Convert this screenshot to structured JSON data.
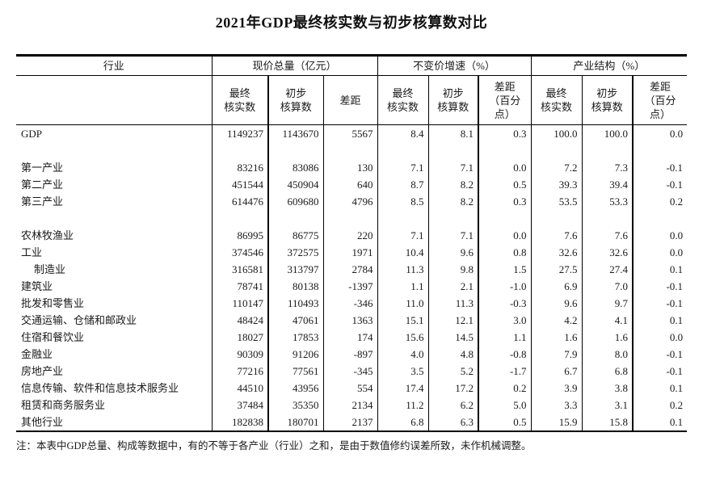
{
  "title": "2021年GDP最终核实数与初步核算数对比",
  "table": {
    "industry_header": "行业",
    "groups": [
      "现价总量（亿元）",
      "不变价增速（%）",
      "产业结构（%）"
    ],
    "subheaders": [
      "最终\n核实数",
      "初步\n核算数",
      "差距",
      "最终\n核实数",
      "初步\n核算数",
      "差距\n（百分\n点）",
      "最终\n核实数",
      "初步\n核算数",
      "差距\n（百分\n点）"
    ],
    "rows": [
      {
        "label": "GDP",
        "values": [
          "1149237",
          "1143670",
          "5567",
          "8.4",
          "8.1",
          "0.3",
          "100.0",
          "100.0",
          "0.0"
        ]
      },
      {
        "blank": true
      },
      {
        "label": "第一产业",
        "values": [
          "83216",
          "83086",
          "130",
          "7.1",
          "7.1",
          "0.0",
          "7.2",
          "7.3",
          "-0.1"
        ]
      },
      {
        "label": "第二产业",
        "values": [
          "451544",
          "450904",
          "640",
          "8.7",
          "8.2",
          "0.5",
          "39.3",
          "39.4",
          "-0.1"
        ]
      },
      {
        "label": "第三产业",
        "values": [
          "614476",
          "609680",
          "4796",
          "8.5",
          "8.2",
          "0.3",
          "53.5",
          "53.3",
          "0.2"
        ]
      },
      {
        "blank": true
      },
      {
        "label": "农林牧渔业",
        "values": [
          "86995",
          "86775",
          "220",
          "7.1",
          "7.1",
          "0.0",
          "7.6",
          "7.6",
          "0.0"
        ]
      },
      {
        "label": "工业",
        "values": [
          "374546",
          "372575",
          "1971",
          "10.4",
          "9.6",
          "0.8",
          "32.6",
          "32.6",
          "0.0"
        ]
      },
      {
        "label": "制造业",
        "indent": true,
        "values": [
          "316581",
          "313797",
          "2784",
          "11.3",
          "9.8",
          "1.5",
          "27.5",
          "27.4",
          "0.1"
        ]
      },
      {
        "label": "建筑业",
        "values": [
          "78741",
          "80138",
          "-1397",
          "1.1",
          "2.1",
          "-1.0",
          "6.9",
          "7.0",
          "-0.1"
        ]
      },
      {
        "label": "批发和零售业",
        "values": [
          "110147",
          "110493",
          "-346",
          "11.0",
          "11.3",
          "-0.3",
          "9.6",
          "9.7",
          "-0.1"
        ]
      },
      {
        "label": "交通运输、仓储和邮政业",
        "values": [
          "48424",
          "47061",
          "1363",
          "15.1",
          "12.1",
          "3.0",
          "4.2",
          "4.1",
          "0.1"
        ]
      },
      {
        "label": "住宿和餐饮业",
        "values": [
          "18027",
          "17853",
          "174",
          "15.6",
          "14.5",
          "1.1",
          "1.6",
          "1.6",
          "0.0"
        ]
      },
      {
        "label": "金融业",
        "values": [
          "90309",
          "91206",
          "-897",
          "4.0",
          "4.8",
          "-0.8",
          "7.9",
          "8.0",
          "-0.1"
        ]
      },
      {
        "label": "房地产业",
        "values": [
          "77216",
          "77561",
          "-345",
          "3.5",
          "5.2",
          "-1.7",
          "6.7",
          "6.8",
          "-0.1"
        ]
      },
      {
        "label": "信息传输、软件和信息技术服务业",
        "values": [
          "44510",
          "43956",
          "554",
          "17.4",
          "17.2",
          "0.2",
          "3.9",
          "3.8",
          "0.1"
        ]
      },
      {
        "label": "租赁和商务服务业",
        "values": [
          "37484",
          "35350",
          "2134",
          "11.2",
          "6.2",
          "5.0",
          "3.3",
          "3.1",
          "0.2"
        ]
      },
      {
        "label": "其他行业",
        "values": [
          "182838",
          "180701",
          "2137",
          "6.8",
          "6.3",
          "0.5",
          "15.9",
          "15.8",
          "0.1"
        ]
      }
    ]
  },
  "footnote": "注：本表中GDP总量、构成等数据中，有的不等于各产业（行业）之和，是由于数值修约误差所致，未作机械调整。"
}
